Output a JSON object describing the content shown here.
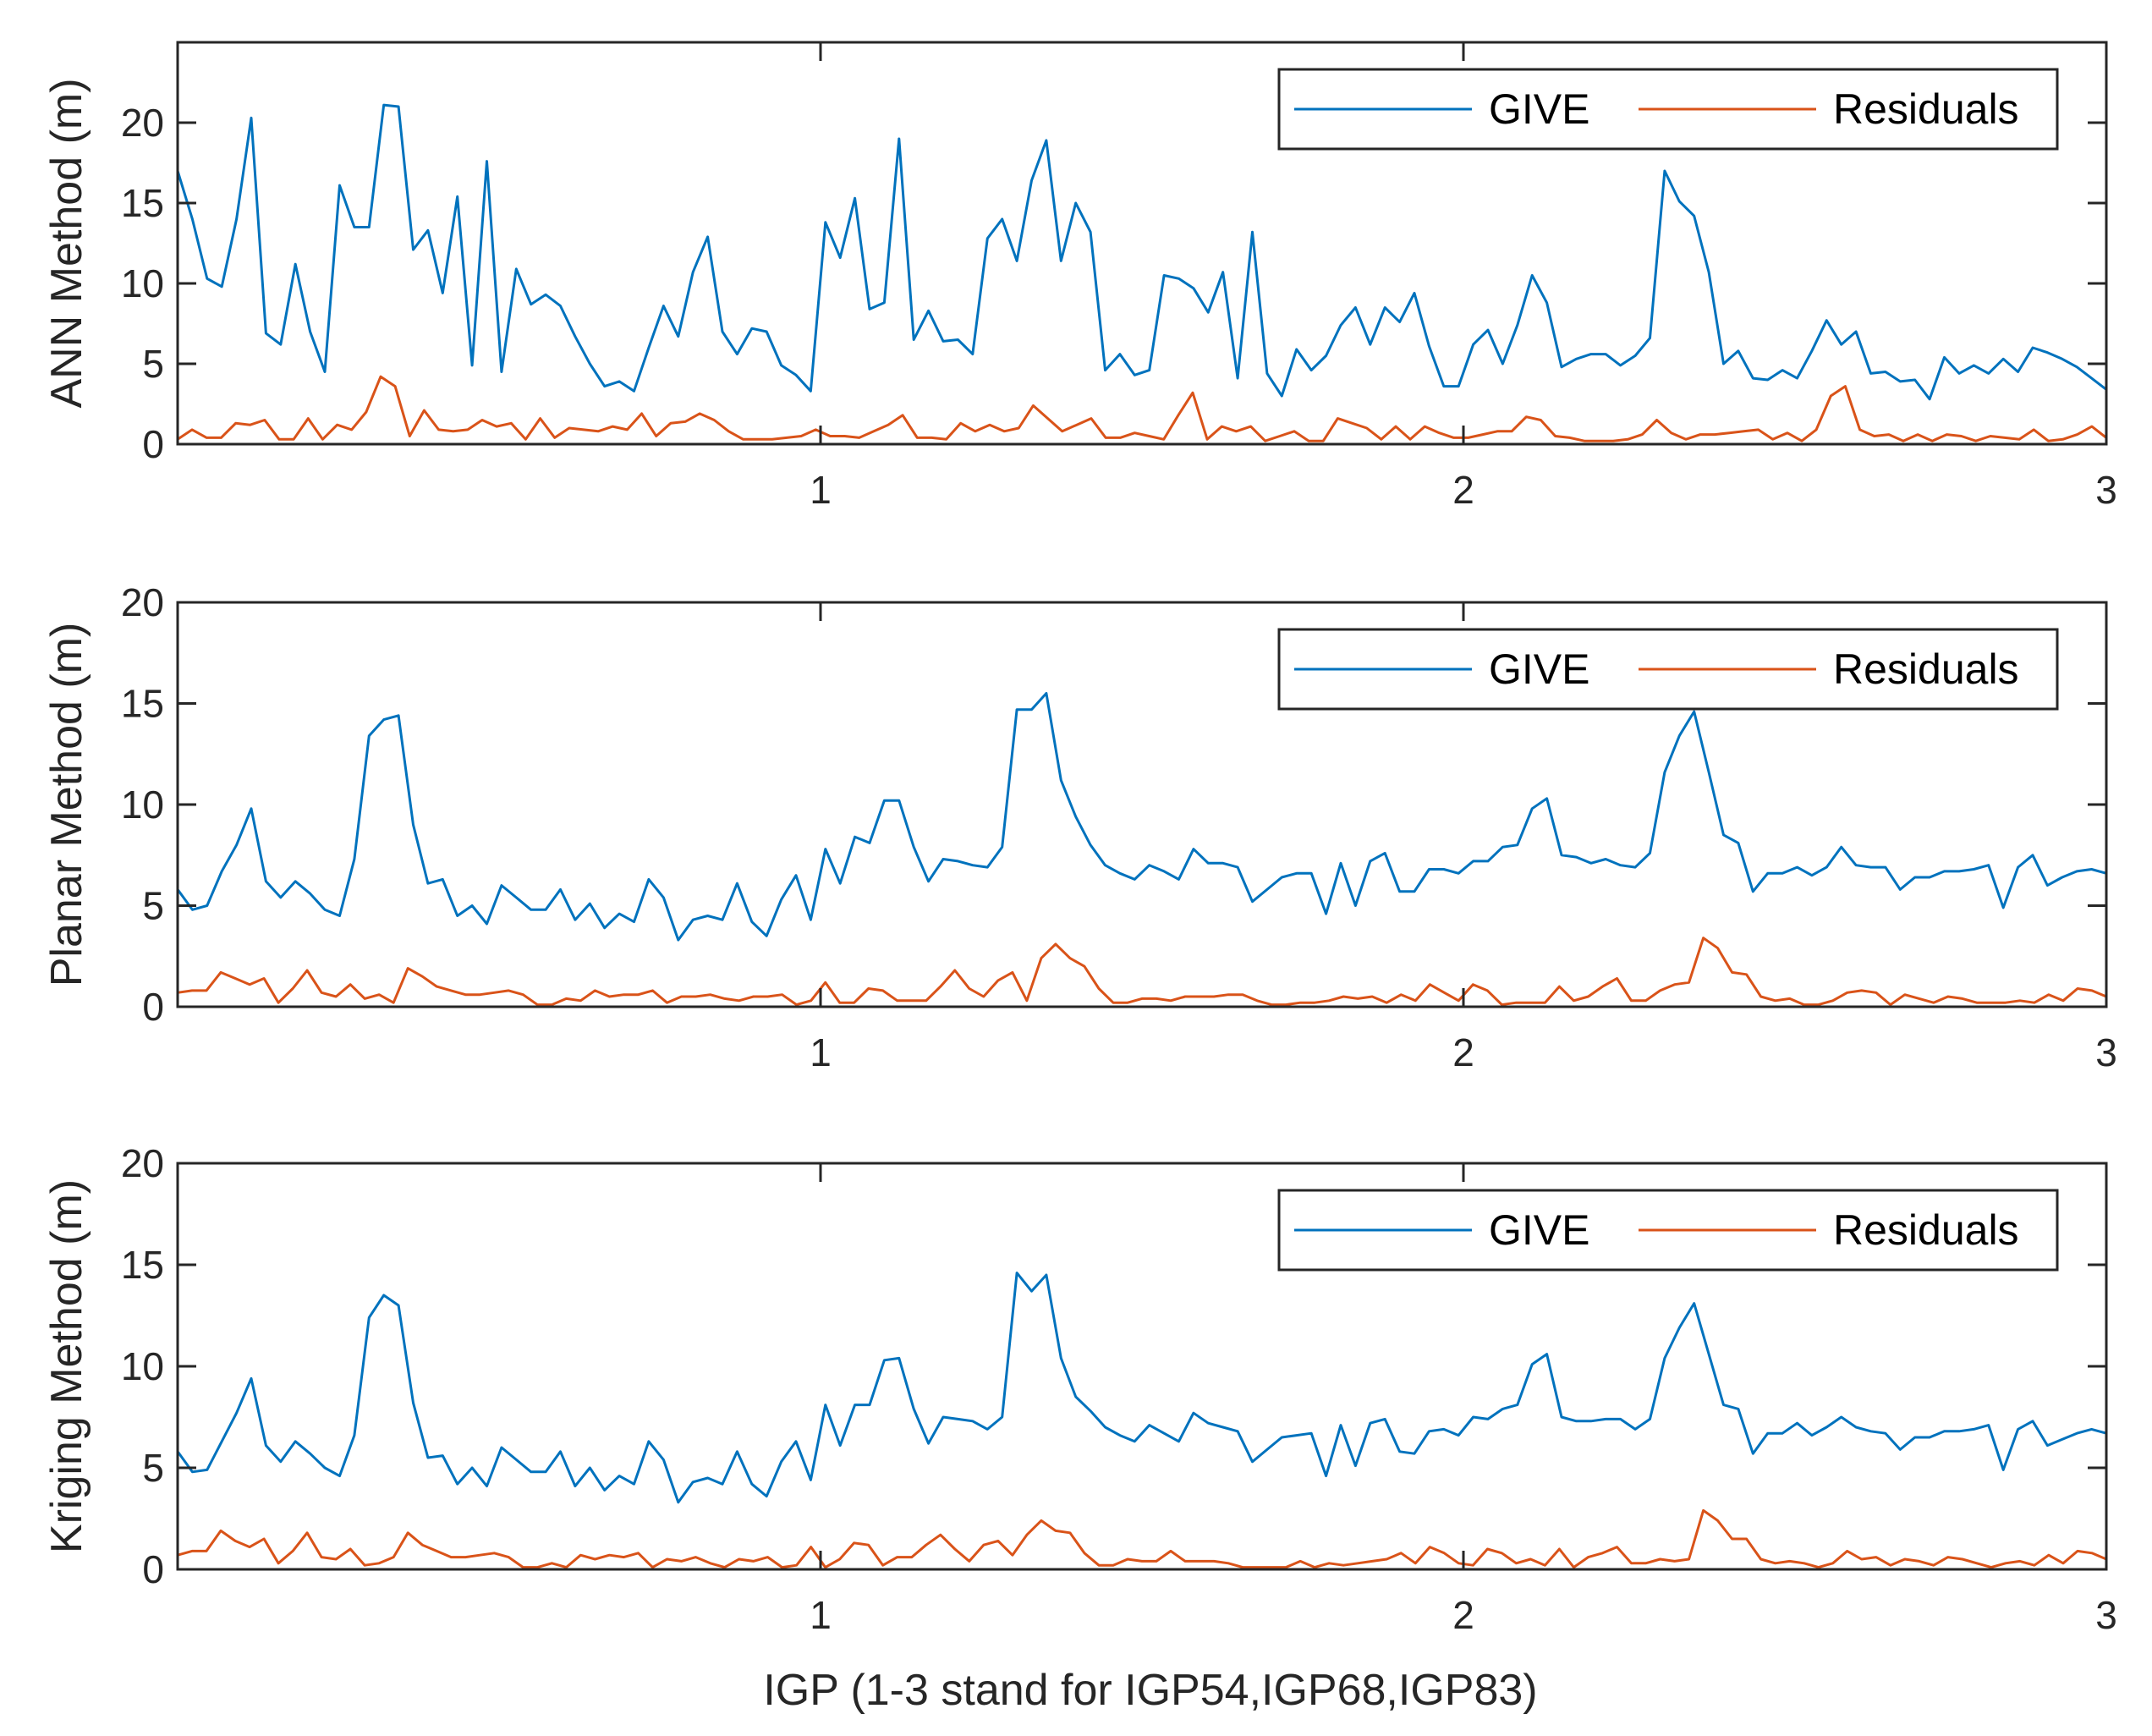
{
  "chart_data": [
    {
      "type": "line",
      "ylabel": "ANN Method (m)",
      "xlabel": "",
      "xlim": [
        0,
        3
      ],
      "ylim": [
        0,
        25
      ],
      "yticks": [
        0,
        5,
        10,
        15,
        20
      ],
      "ytick_labels": [
        "0",
        "5",
        "10",
        "15",
        "20"
      ],
      "xticks": [
        1,
        2,
        3
      ],
      "xtick_labels": [
        "1",
        "2",
        "3"
      ],
      "legend_position": "top-right",
      "series": [
        {
          "name": "GIVE",
          "color": "#0072BD",
          "values": [
            17.0,
            14.0,
            10.3,
            9.8,
            14.0,
            20.3,
            6.9,
            6.2,
            11.2,
            7.0,
            4.5,
            16.1,
            13.5,
            13.5,
            21.1,
            21.0,
            12.1,
            13.3,
            9.4,
            15.4,
            4.9,
            17.6,
            4.5,
            10.9,
            8.7,
            9.3,
            8.6,
            6.7,
            5.0,
            3.6,
            3.9,
            3.3,
            6.0,
            8.6,
            6.7,
            10.7,
            12.9,
            7.0,
            5.6,
            7.2,
            7.0,
            4.9,
            4.3,
            3.3,
            13.8,
            11.6,
            15.3,
            8.4,
            8.8,
            19.0,
            6.5,
            8.3,
            6.4,
            6.5,
            5.6,
            12.8,
            14.0,
            11.4,
            16.4,
            18.9,
            11.4,
            15.0,
            13.2,
            4.6,
            5.6,
            4.3,
            4.6,
            10.5,
            10.3,
            9.7,
            8.2,
            10.7,
            4.1,
            13.2,
            4.4,
            3.0,
            5.9,
            4.6,
            5.5,
            7.4,
            8.5,
            6.2,
            8.5,
            7.6,
            9.4,
            6.1,
            3.6,
            3.6,
            6.2,
            7.1,
            5.0,
            7.4,
            10.5,
            8.8,
            4.8,
            5.3,
            5.6,
            5.6,
            4.9,
            5.5,
            6.6,
            17.0,
            15.1,
            14.2,
            10.7,
            5.0,
            5.8,
            4.1,
            4.0,
            4.6,
            4.1,
            5.8,
            7.7,
            6.2,
            7.0,
            4.4,
            4.5,
            3.9,
            4.0,
            2.8,
            5.4,
            4.4,
            4.9,
            4.4,
            5.3,
            4.5,
            6.0,
            5.7,
            5.3,
            4.8,
            4.1,
            3.4
          ]
        },
        {
          "name": "Residuals",
          "color": "#D95319",
          "values": [
            0.3,
            0.9,
            0.4,
            0.4,
            1.3,
            1.2,
            1.5,
            0.3,
            0.3,
            1.6,
            0.3,
            1.2,
            0.9,
            2.0,
            4.2,
            3.6,
            0.5,
            2.1,
            0.9,
            0.8,
            0.9,
            1.5,
            1.1,
            1.3,
            0.3,
            1.6,
            0.4,
            1.0,
            0.9,
            0.8,
            1.1,
            0.9,
            1.9,
            0.5,
            1.3,
            1.4,
            1.9,
            1.5,
            0.8,
            0.3,
            0.3,
            0.3,
            0.4,
            0.5,
            0.9,
            0.5,
            0.5,
            0.4,
            0.8,
            1.2,
            1.8,
            0.4,
            0.4,
            0.3,
            1.3,
            0.8,
            1.2,
            0.8,
            1.0,
            2.4,
            1.6,
            0.8,
            1.2,
            1.6,
            0.4,
            0.4,
            0.7,
            0.5,
            0.3,
            1.8,
            3.2,
            0.3,
            1.1,
            0.8,
            1.1,
            0.2,
            0.5,
            0.8,
            0.2,
            0.2,
            1.6,
            1.3,
            1.0,
            0.3,
            1.1,
            0.3,
            1.1,
            0.7,
            0.4,
            0.4,
            0.6,
            0.8,
            0.8,
            1.7,
            1.5,
            0.5,
            0.4,
            0.2,
            0.2,
            0.2,
            0.3,
            0.6,
            1.5,
            0.7,
            0.3,
            0.6,
            0.6,
            0.7,
            0.8,
            0.9,
            0.3,
            0.7,
            0.2,
            0.9,
            3.0,
            3.6,
            0.9,
            0.5,
            0.6,
            0.2,
            0.6,
            0.2,
            0.6,
            0.5,
            0.2,
            0.5,
            0.4,
            0.3,
            0.9,
            0.2,
            0.3,
            0.6,
            1.1,
            0.4
          ]
        }
      ]
    },
    {
      "type": "line",
      "ylabel": "Planar Method (m)",
      "xlabel": "",
      "xlim": [
        0,
        3
      ],
      "ylim": [
        0,
        20
      ],
      "yticks": [
        0,
        5,
        10,
        15,
        20
      ],
      "ytick_labels": [
        "0",
        "5",
        "10",
        "15",
        "20"
      ],
      "xticks": [
        1,
        2,
        3
      ],
      "xtick_labels": [
        "1",
        "2",
        "3"
      ],
      "legend_position": "top-right",
      "series": [
        {
          "name": "GIVE",
          "color": "#0072BD",
          "values": [
            5.8,
            4.8,
            5.0,
            6.7,
            8.0,
            9.8,
            6.2,
            5.4,
            6.2,
            5.6,
            4.8,
            4.5,
            7.3,
            13.4,
            14.2,
            14.4,
            9.0,
            6.1,
            6.3,
            4.5,
            5.0,
            4.1,
            6.0,
            5.4,
            4.8,
            4.8,
            5.8,
            4.3,
            5.1,
            3.9,
            4.6,
            4.2,
            6.3,
            5.4,
            3.3,
            4.3,
            4.5,
            4.3,
            6.1,
            4.2,
            3.5,
            5.3,
            6.5,
            4.3,
            7.8,
            6.1,
            8.4,
            8.1,
            10.2,
            10.2,
            7.9,
            6.2,
            7.3,
            7.2,
            7.0,
            6.9,
            7.9,
            14.7,
            14.7,
            15.5,
            11.2,
            9.4,
            8.0,
            7.0,
            6.6,
            6.3,
            7.0,
            6.7,
            6.3,
            7.8,
            7.1,
            7.1,
            6.9,
            5.2,
            5.8,
            6.4,
            6.6,
            6.6,
            4.6,
            7.1,
            5.0,
            7.2,
            7.6,
            5.7,
            5.7,
            6.8,
            6.8,
            6.6,
            7.2,
            7.2,
            7.9,
            8.0,
            9.8,
            10.3,
            7.5,
            7.4,
            7.1,
            7.3,
            7.0,
            6.9,
            7.6,
            11.6,
            13.4,
            14.6,
            11.6,
            8.5,
            8.1,
            5.7,
            6.6,
            6.6,
            6.9,
            6.5,
            6.9,
            7.9,
            7.0,
            6.9,
            6.9,
            5.8,
            6.4,
            6.4,
            6.7,
            6.7,
            6.8,
            7.0,
            4.9,
            6.9,
            7.5,
            6.0,
            6.4,
            6.7,
            6.8,
            6.6
          ]
        },
        {
          "name": "Residuals",
          "color": "#D95319",
          "values": [
            0.7,
            0.8,
            0.8,
            1.7,
            1.4,
            1.1,
            1.4,
            0.2,
            0.9,
            1.8,
            0.7,
            0.5,
            1.1,
            0.4,
            0.6,
            0.2,
            1.9,
            1.5,
            1.0,
            0.8,
            0.6,
            0.6,
            0.7,
            0.8,
            0.6,
            0.1,
            0.1,
            0.4,
            0.3,
            0.8,
            0.5,
            0.6,
            0.6,
            0.8,
            0.2,
            0.5,
            0.5,
            0.6,
            0.4,
            0.3,
            0.5,
            0.5,
            0.6,
            0.1,
            0.3,
            1.2,
            0.2,
            0.2,
            0.9,
            0.8,
            0.3,
            0.3,
            0.3,
            1.0,
            1.8,
            0.9,
            0.5,
            1.3,
            1.7,
            0.3,
            2.4,
            3.1,
            2.4,
            2.0,
            0.9,
            0.2,
            0.2,
            0.4,
            0.4,
            0.3,
            0.5,
            0.5,
            0.5,
            0.6,
            0.6,
            0.3,
            0.1,
            0.1,
            0.2,
            0.2,
            0.3,
            0.5,
            0.4,
            0.5,
            0.2,
            0.6,
            0.3,
            1.1,
            0.7,
            0.3,
            1.1,
            0.8,
            0.1,
            0.2,
            0.2,
            0.2,
            1.0,
            0.3,
            0.5,
            1.0,
            1.4,
            0.3,
            0.3,
            0.8,
            1.1,
            1.2,
            3.4,
            2.9,
            1.7,
            1.6,
            0.5,
            0.3,
            0.4,
            0.1,
            0.1,
            0.3,
            0.7,
            0.8,
            0.7,
            0.1,
            0.6,
            0.4,
            0.2,
            0.5,
            0.4,
            0.2,
            0.2,
            0.2,
            0.3,
            0.2,
            0.6,
            0.3,
            0.9,
            0.8,
            0.5
          ]
        }
      ]
    },
    {
      "type": "line",
      "ylabel": "Kriging Method (m)",
      "xlabel": "IGP (1-3 stand for IGP54,IGP68,IGP83)",
      "xlim": [
        0,
        3
      ],
      "ylim": [
        0,
        20
      ],
      "yticks": [
        0,
        5,
        10,
        15,
        20
      ],
      "ytick_labels": [
        "0",
        "5",
        "10",
        "15",
        "20"
      ],
      "xticks": [
        1,
        2,
        3
      ],
      "xtick_labels": [
        "1",
        "2",
        "3"
      ],
      "legend_position": "top-right",
      "series": [
        {
          "name": "GIVE",
          "color": "#0072BD",
          "values": [
            5.8,
            4.8,
            4.9,
            6.3,
            7.7,
            9.4,
            6.1,
            5.3,
            6.3,
            5.7,
            5.0,
            4.6,
            6.6,
            12.4,
            13.5,
            13.0,
            8.2,
            5.5,
            5.6,
            4.2,
            5.0,
            4.1,
            6.0,
            5.4,
            4.8,
            4.8,
            5.8,
            4.1,
            5.0,
            3.9,
            4.6,
            4.2,
            6.3,
            5.4,
            3.3,
            4.3,
            4.5,
            4.2,
            5.8,
            4.2,
            3.6,
            5.3,
            6.3,
            4.4,
            8.1,
            6.1,
            8.1,
            8.1,
            10.3,
            10.4,
            7.9,
            6.2,
            7.5,
            7.4,
            7.3,
            6.9,
            7.5,
            14.6,
            13.7,
            14.5,
            10.4,
            8.5,
            7.8,
            7.0,
            6.6,
            6.3,
            7.1,
            6.7,
            6.3,
            7.7,
            7.2,
            7.0,
            6.8,
            5.3,
            5.9,
            6.5,
            6.6,
            6.7,
            4.6,
            7.1,
            5.1,
            7.2,
            7.4,
            5.8,
            5.7,
            6.8,
            6.9,
            6.6,
            7.5,
            7.4,
            7.9,
            8.1,
            10.1,
            10.6,
            7.5,
            7.3,
            7.3,
            7.4,
            7.4,
            6.9,
            7.4,
            10.4,
            11.9,
            13.1,
            10.6,
            8.1,
            7.9,
            5.7,
            6.7,
            6.7,
            7.2,
            6.6,
            7.0,
            7.5,
            7.0,
            6.8,
            6.7,
            5.9,
            6.5,
            6.5,
            6.8,
            6.8,
            6.9,
            7.1,
            4.9,
            6.9,
            7.3,
            6.1,
            6.4,
            6.7,
            6.9,
            6.7
          ]
        },
        {
          "name": "Residuals",
          "color": "#D95319",
          "values": [
            0.7,
            0.9,
            0.9,
            1.9,
            1.4,
            1.1,
            1.5,
            0.3,
            0.9,
            1.8,
            0.6,
            0.5,
            1.0,
            0.2,
            0.3,
            0.6,
            1.8,
            1.2,
            0.9,
            0.6,
            0.6,
            0.7,
            0.8,
            0.6,
            0.1,
            0.1,
            0.3,
            0.1,
            0.7,
            0.5,
            0.7,
            0.6,
            0.8,
            0.1,
            0.5,
            0.4,
            0.6,
            0.3,
            0.1,
            0.5,
            0.4,
            0.6,
            0.1,
            0.2,
            1.1,
            0.1,
            0.5,
            1.3,
            1.2,
            0.2,
            0.6,
            0.6,
            1.2,
            1.7,
            1.0,
            0.4,
            1.2,
            1.4,
            0.7,
            1.7,
            2.4,
            1.9,
            1.8,
            0.8,
            0.2,
            0.2,
            0.5,
            0.4,
            0.4,
            0.9,
            0.4,
            0.4,
            0.4,
            0.3,
            0.1,
            0.1,
            0.1,
            0.1,
            0.4,
            0.1,
            0.3,
            0.2,
            0.3,
            0.4,
            0.5,
            0.8,
            0.3,
            1.1,
            0.8,
            0.3,
            0.2,
            1.0,
            0.8,
            0.3,
            0.5,
            0.2,
            1.0,
            0.1,
            0.6,
            0.8,
            1.1,
            0.3,
            0.3,
            0.5,
            0.4,
            0.5,
            2.9,
            2.4,
            1.5,
            1.5,
            0.5,
            0.3,
            0.4,
            0.3,
            0.1,
            0.3,
            0.9,
            0.5,
            0.6,
            0.2,
            0.5,
            0.4,
            0.2,
            0.6,
            0.5,
            0.3,
            0.1,
            0.3,
            0.4,
            0.2,
            0.7,
            0.3,
            0.9,
            0.8,
            0.5
          ]
        }
      ]
    }
  ]
}
